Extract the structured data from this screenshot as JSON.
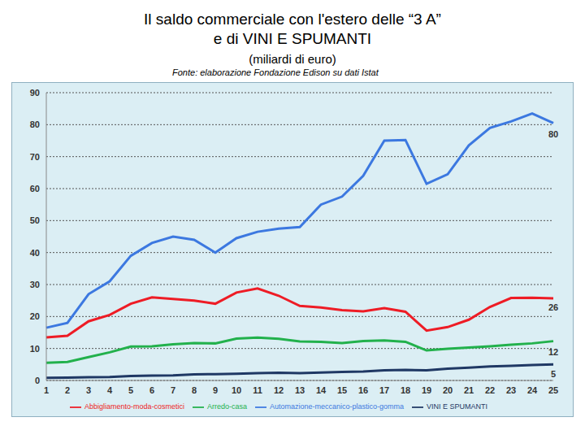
{
  "chart_data": {
    "type": "line",
    "title": "Il saldo commerciale con l'estero delle “3 A”\ne di VINI E SPUMANTI",
    "subtitle": "(miliardi di euro)",
    "source": "Fonte: elaborazione Fondazione Edison su dati Istat",
    "categories": [
      "1",
      "2",
      "3",
      "4",
      "5",
      "6",
      "7",
      "8",
      "9",
      "10",
      "11",
      "12",
      "13",
      "14",
      "15",
      "16",
      "17",
      "18",
      "19",
      "20",
      "21",
      "22",
      "23",
      "24",
      "25"
    ],
    "series": [
      {
        "name": "VINI E SPUMANTI",
        "color": "#1f3864",
        "values": [
          0.8,
          0.9,
          1,
          1.1,
          1.4,
          1.5,
          1.6,
          1.9,
          2,
          2.1,
          2.3,
          2.4,
          2.3,
          2.5,
          2.7,
          2.8,
          3.2,
          3.3,
          3.2,
          3.7,
          4,
          4.4,
          4.6,
          4.8,
          5
        ]
      },
      {
        "name": "Abbigliamento-moda-cosmetici",
        "color": "#ee1c25",
        "values": [
          13.5,
          14,
          18.5,
          20.5,
          24,
          26,
          25.5,
          25,
          24,
          27.5,
          28.8,
          26.5,
          23.3,
          22.8,
          22,
          21.6,
          22.6,
          21.5,
          15.6,
          16.7,
          19,
          23,
          25.8,
          25.9,
          25.7
        ]
      },
      {
        "name": "Arredo-casa",
        "color": "#22b14c",
        "values": [
          5.5,
          5.8,
          7.3,
          8.8,
          10.6,
          10.7,
          11.3,
          11.7,
          11.6,
          13.1,
          13.4,
          13,
          12.2,
          12.1,
          11.7,
          12.3,
          12.5,
          12.1,
          9.4,
          9.9,
          10.3,
          10.7,
          11.2,
          11.6,
          12.3
        ]
      },
      {
        "name": "Automazione-meccanico-plastico-gomma",
        "color": "#3c78e0",
        "values": [
          16.5,
          18,
          27,
          31,
          39,
          43,
          45,
          44,
          40,
          44.5,
          46.5,
          47.5,
          48,
          55,
          57.5,
          64,
          75,
          75.2,
          61.5,
          64.5,
          73.5,
          79,
          81,
          83.5,
          80.5
        ]
      }
    ],
    "annotations": [
      {
        "text": "80",
        "x": "25",
        "y": 80
      },
      {
        "text": "26",
        "x": "25",
        "y": 26
      },
      {
        "text": "12",
        "x": "25",
        "y": 12
      },
      {
        "text": "5",
        "x": "25",
        "y": 5
      }
    ],
    "ylim": [
      0,
      90
    ],
    "yticks": [
      0,
      10,
      20,
      30,
      40,
      50,
      60,
      70,
      80,
      90
    ],
    "grid": true,
    "legend": "bottom"
  }
}
